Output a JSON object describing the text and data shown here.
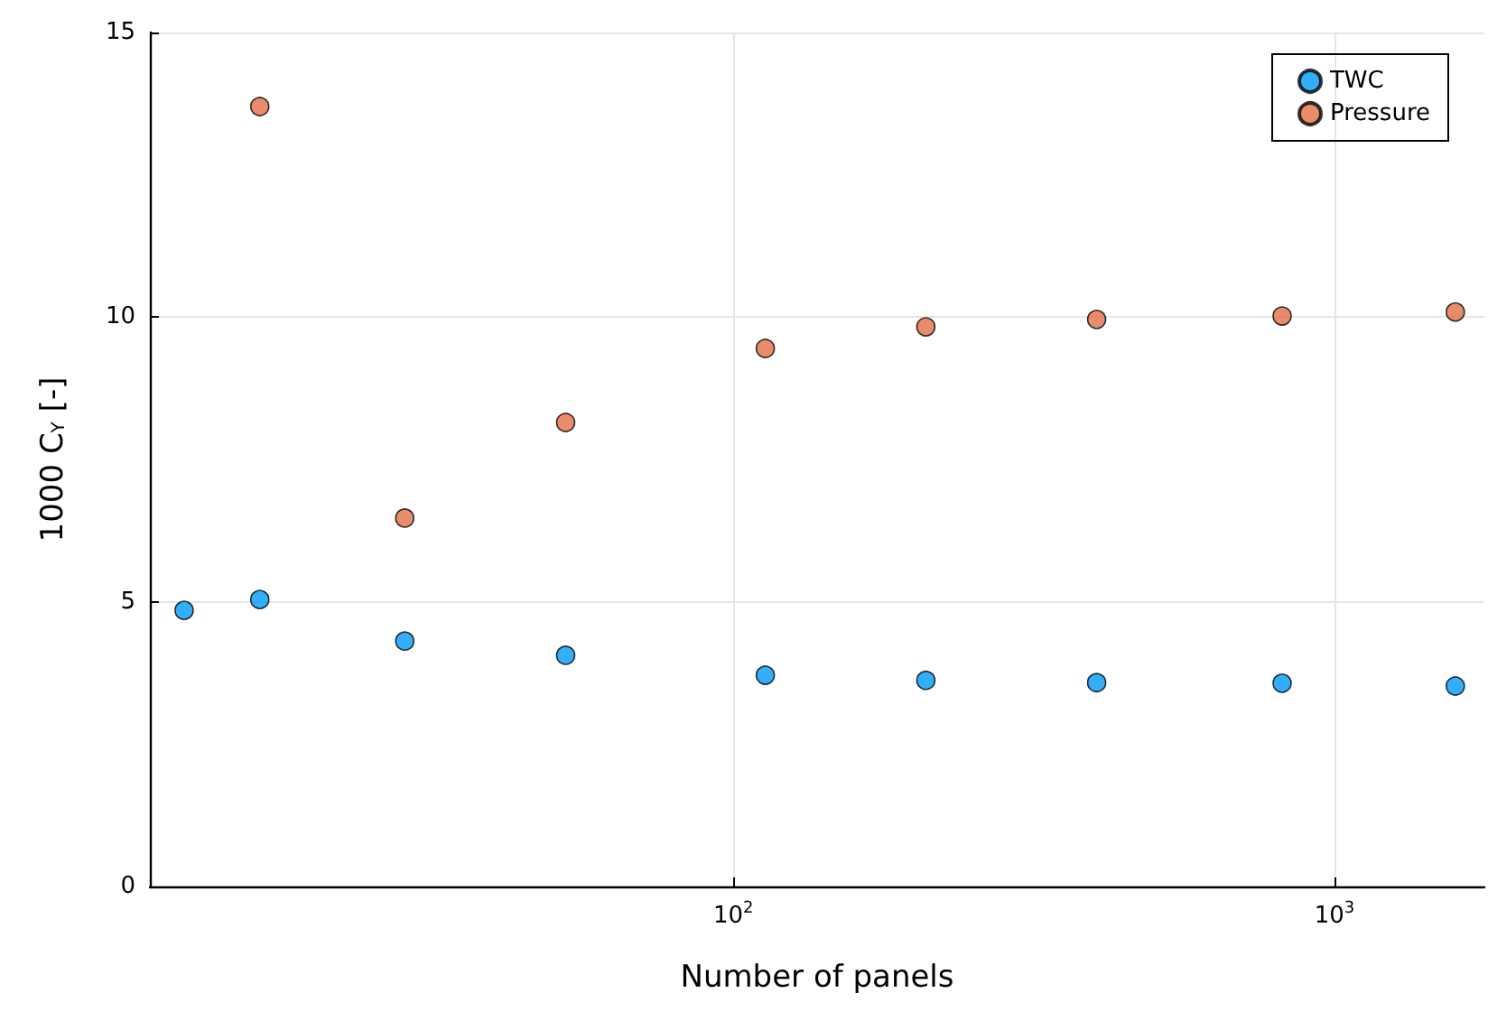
{
  "chart_data": {
    "type": "scatter",
    "xlabel": "Number of panels",
    "ylabel": "1000 C$_{Y}$ [-]",
    "log": "x",
    "xlim": [
      10.7,
      1775
    ],
    "xticks": [
      {
        "value": 100,
        "label": "10$^{2}$"
      },
      {
        "value": 1000,
        "label": "10$^{3}$"
      }
    ],
    "ylim": [
      0,
      15
    ],
    "yticks": [
      0,
      5,
      10,
      15
    ],
    "grid": true,
    "legend": "top right",
    "marker": "circle",
    "series": [
      {
        "name": "TWC",
        "color": "#009af9",
        "x": [
          12.2,
          16.3,
          28.4,
          52.6,
          113,
          209,
          402,
          818,
          1588
        ],
        "values": [
          4.85,
          5.04,
          4.31,
          4.06,
          3.71,
          3.62,
          3.58,
          3.57,
          3.52
        ]
      },
      {
        "name": "Pressure",
        "color": "#e26f46",
        "x": [
          16.3,
          28.4,
          52.6,
          113,
          209,
          402,
          818,
          1588
        ],
        "values": [
          13.7,
          6.47,
          8.15,
          9.45,
          9.83,
          9.96,
          10.02,
          10.09
        ]
      }
    ]
  }
}
